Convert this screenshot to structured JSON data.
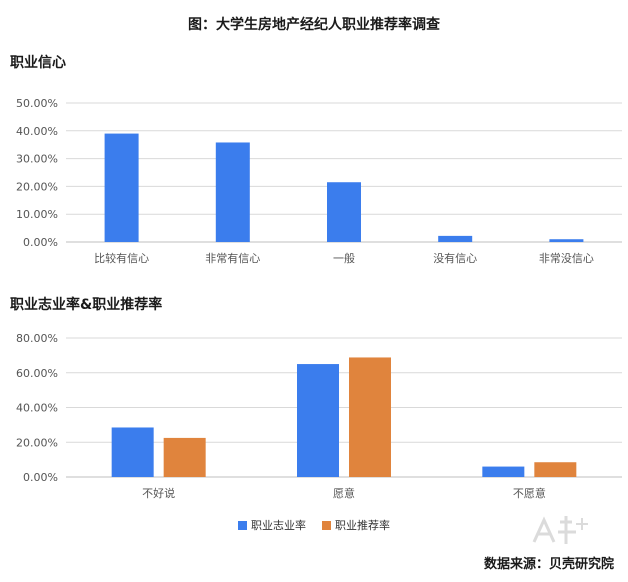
{
  "main_title": "图：大学生房地产经纪人职业推荐率调查",
  "source": "数据来源：贝壳研究院",
  "colors": {
    "blue": "#3b7ded",
    "orange": "#e0843d",
    "grid": "#d9d9d9",
    "axis": "#bfbfbf"
  },
  "chart_data": [
    {
      "type": "bar",
      "title": "职业信心",
      "categories": [
        "比较有信心",
        "非常有信心",
        "一般",
        "没有信心",
        "非常没信心"
      ],
      "series": [
        {
          "name": "",
          "color": "#3b7ded",
          "values": [
            39.0,
            35.8,
            21.5,
            2.2,
            1.0
          ]
        }
      ],
      "y_ticks": [
        "0.00%",
        "10.00%",
        "20.00%",
        "30.00%",
        "40.00%",
        "50.00%"
      ],
      "ylim": [
        0,
        50
      ],
      "grid": true
    },
    {
      "type": "bar",
      "title": "职业志业率&职业推荐率",
      "categories": [
        "不好说",
        "愿意",
        "不愿意"
      ],
      "series": [
        {
          "name": "职业志业率",
          "color": "#3b7ded",
          "values": [
            28.5,
            65.0,
            6.0
          ]
        },
        {
          "name": "职业推荐率",
          "color": "#e0843d",
          "values": [
            22.5,
            68.8,
            8.5
          ]
        }
      ],
      "y_ticks": [
        "0.00%",
        "20.00%",
        "40.00%",
        "60.00%",
        "80.00%"
      ],
      "ylim": [
        0,
        80
      ],
      "grid": true,
      "legend": "bottom"
    }
  ]
}
